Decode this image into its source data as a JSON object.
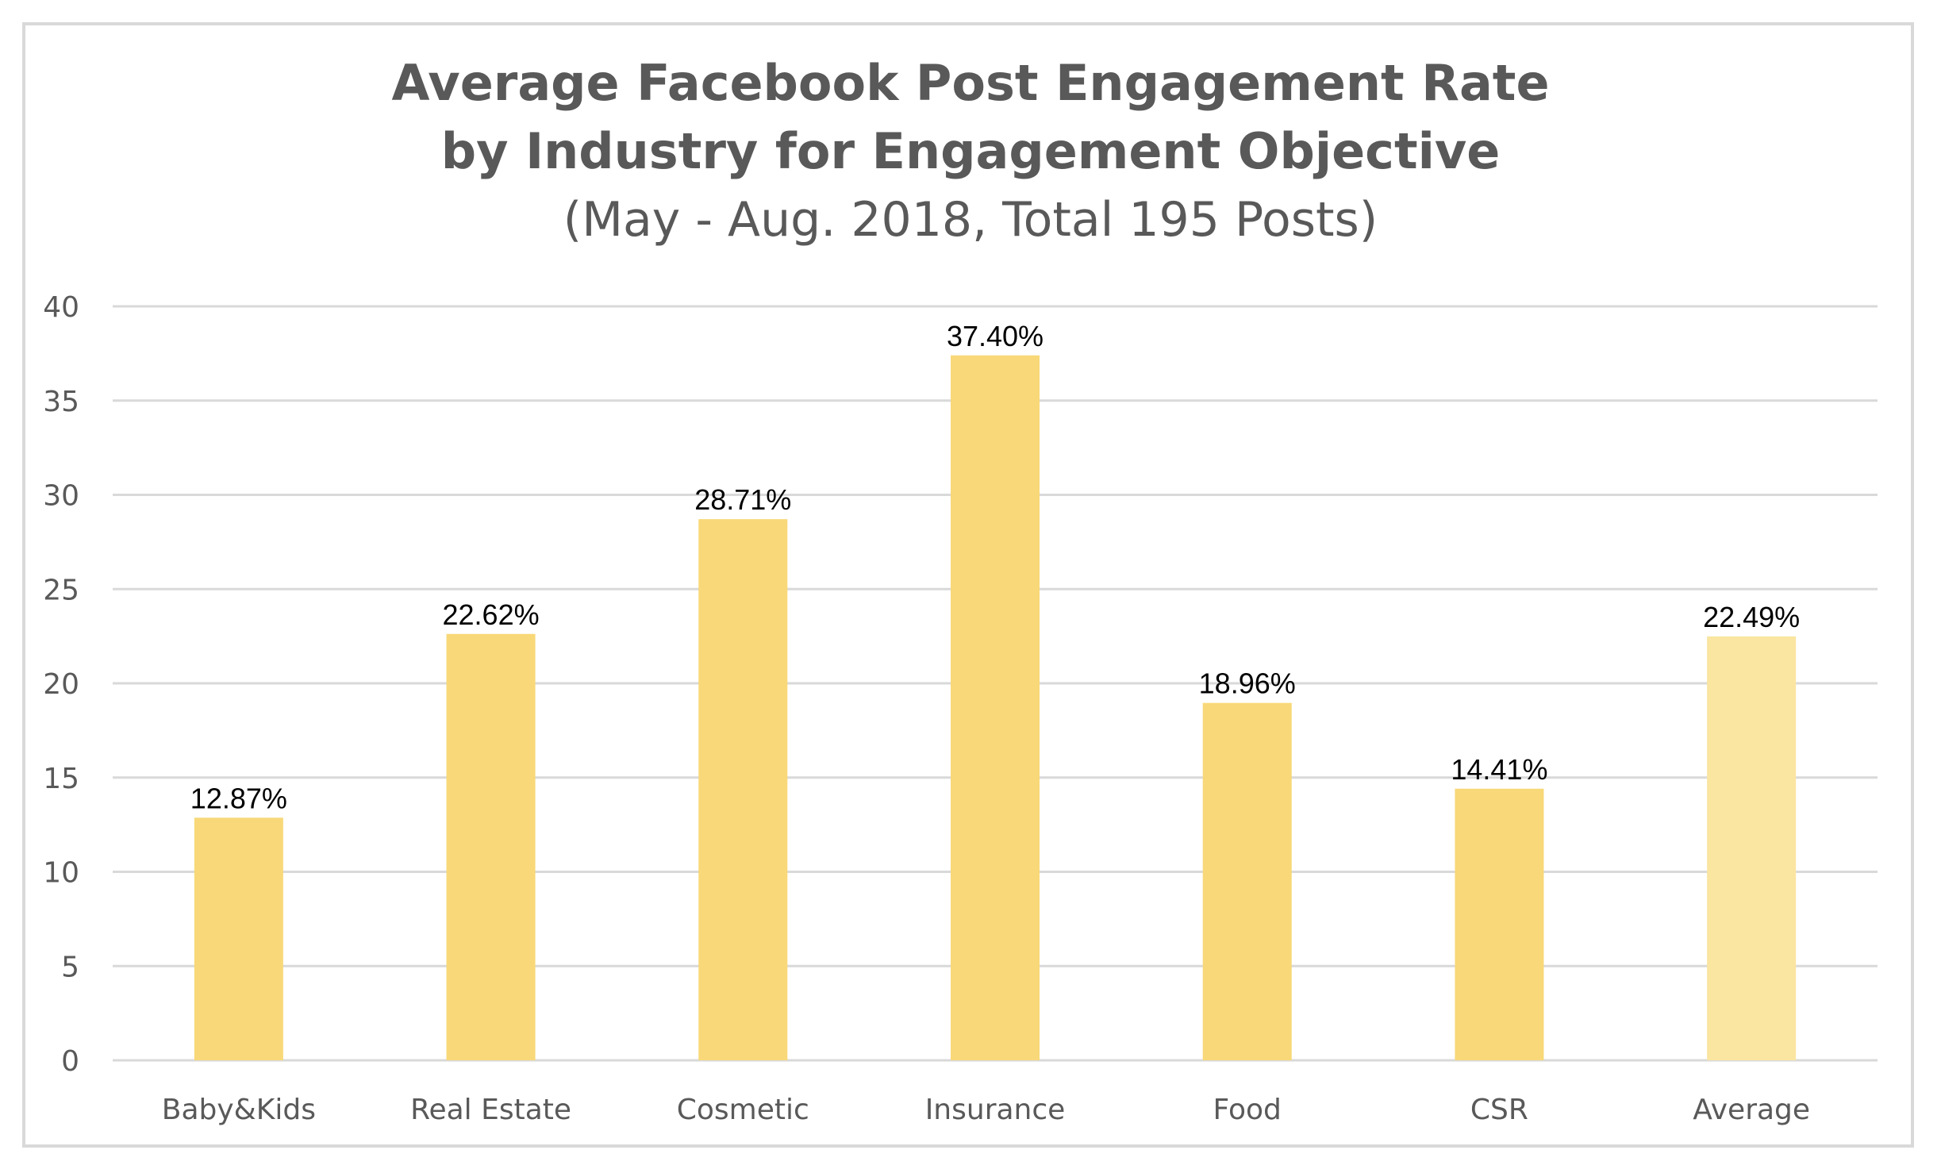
{
  "chart_data": {
    "type": "bar",
    "title": "Average Facebook Post Engagement Rate",
    "title_line2": "by Industry for Engagement Objective",
    "subtitle": "(May - Aug. 2018, Total 195 Posts)",
    "categories": [
      "Baby&Kids",
      "Real Estate",
      "Cosmetic",
      "Insurance",
      "Food",
      "CSR",
      "Average"
    ],
    "values": [
      12.87,
      22.62,
      28.71,
      37.4,
      18.96,
      14.41,
      22.49
    ],
    "data_labels": [
      "12.87%",
      "22.62%",
      "28.71%",
      "37.40%",
      "18.96%",
      "14.41%",
      "22.49%"
    ],
    "y_ticks": [
      "0",
      "5",
      "10",
      "15",
      "20",
      "25",
      "30",
      "35",
      "40"
    ],
    "ylim": [
      0,
      40
    ],
    "grid": true,
    "legend": "none",
    "colors": {
      "bar": "#f8d878",
      "bar_highlight": "#fae5a1",
      "grid": "#d9d9d9",
      "text": "#595959"
    }
  }
}
